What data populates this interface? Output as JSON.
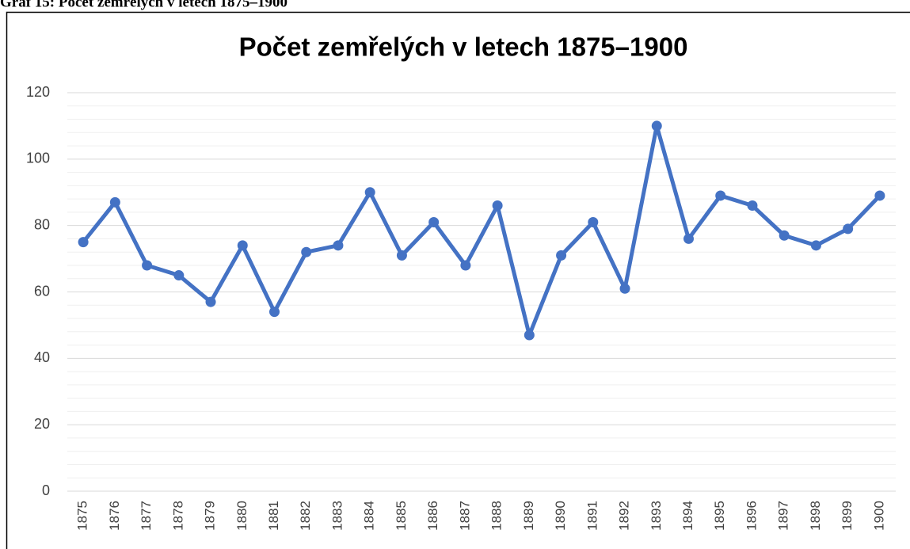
{
  "caption": "Graf 15: Počet zemřelých v letech 1875–1900",
  "chart_data": {
    "type": "line",
    "title": "Počet zemřelých v letech 1875–1900",
    "categories": [
      "1875",
      "1876",
      "1877",
      "1878",
      "1879",
      "1880",
      "1881",
      "1882",
      "1883",
      "1884",
      "1885",
      "1886",
      "1887",
      "1888",
      "1889",
      "1890",
      "1891",
      "1892",
      "1893",
      "1894",
      "1895",
      "1896",
      "1897",
      "1898",
      "1899",
      "1900"
    ],
    "series": [
      {
        "name": "Počet zemřelých",
        "color": "#4472c4",
        "values": [
          75,
          87,
          68,
          65,
          57,
          74,
          54,
          72,
          74,
          90,
          71,
          81,
          68,
          86,
          47,
          71,
          81,
          61,
          110,
          76,
          89,
          86,
          77,
          74,
          79,
          89
        ]
      }
    ],
    "ylim": [
      0,
      120
    ],
    "yticks": [
      0,
      20,
      40,
      60,
      80,
      100,
      120
    ],
    "minor_yticks": [
      4,
      8,
      12,
      16,
      24,
      28,
      32,
      36,
      44,
      48,
      52,
      56,
      64,
      68,
      72,
      76,
      84,
      88,
      92,
      96,
      104,
      108,
      112,
      116
    ],
    "grid": true,
    "legend": false
  }
}
